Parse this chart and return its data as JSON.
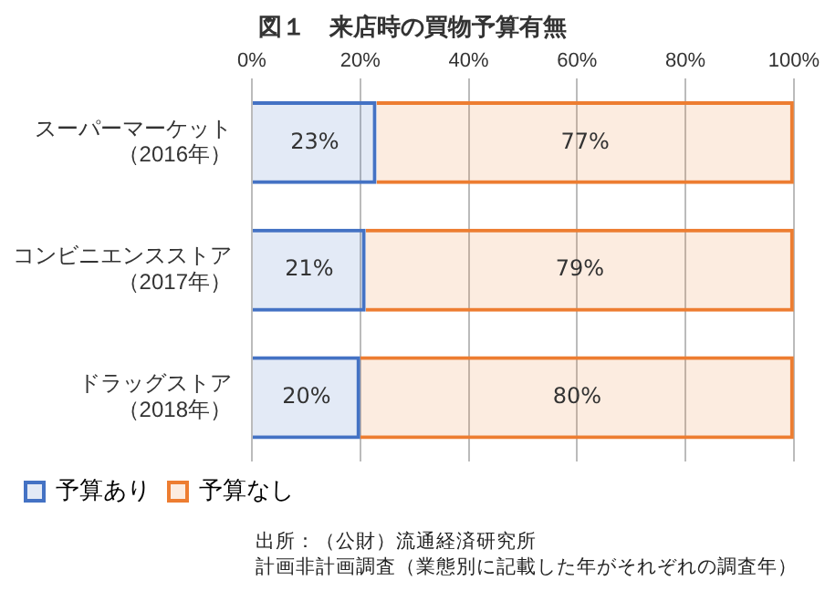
{
  "chart_data": {
    "type": "bar",
    "orientation": "horizontal",
    "stacked": true,
    "title": "図１　来店時の買物予算有無",
    "categories": [
      "スーパーマーケット（2016年）",
      "コンビニエンスストア（2017年）",
      "ドラッグストア（2018年）"
    ],
    "series": [
      {
        "name": "予算あり",
        "color": "#4472c4",
        "values": [
          23,
          21,
          20
        ],
        "value_labels": [
          "23%",
          "21%",
          "20%"
        ]
      },
      {
        "name": "予算なし",
        "color": "#ed7d31",
        "values": [
          77,
          79,
          80
        ],
        "value_labels": [
          "77%",
          "79%",
          "80%"
        ]
      }
    ],
    "xlim": [
      0,
      100
    ],
    "xticks": [
      {
        "value": 0,
        "label": "0%"
      },
      {
        "value": 20,
        "label": "20%"
      },
      {
        "value": 40,
        "label": "40%"
      },
      {
        "value": 60,
        "label": "60%"
      },
      {
        "value": 80,
        "label": "80%"
      },
      {
        "value": 100,
        "label": "100%"
      }
    ],
    "grid": "x",
    "legend": "bottom",
    "annotations": [
      "出所：（公財）流通経済研究所",
      "計画非計画調査（業態別に記載した年がそれぞれの調査年）"
    ]
  }
}
